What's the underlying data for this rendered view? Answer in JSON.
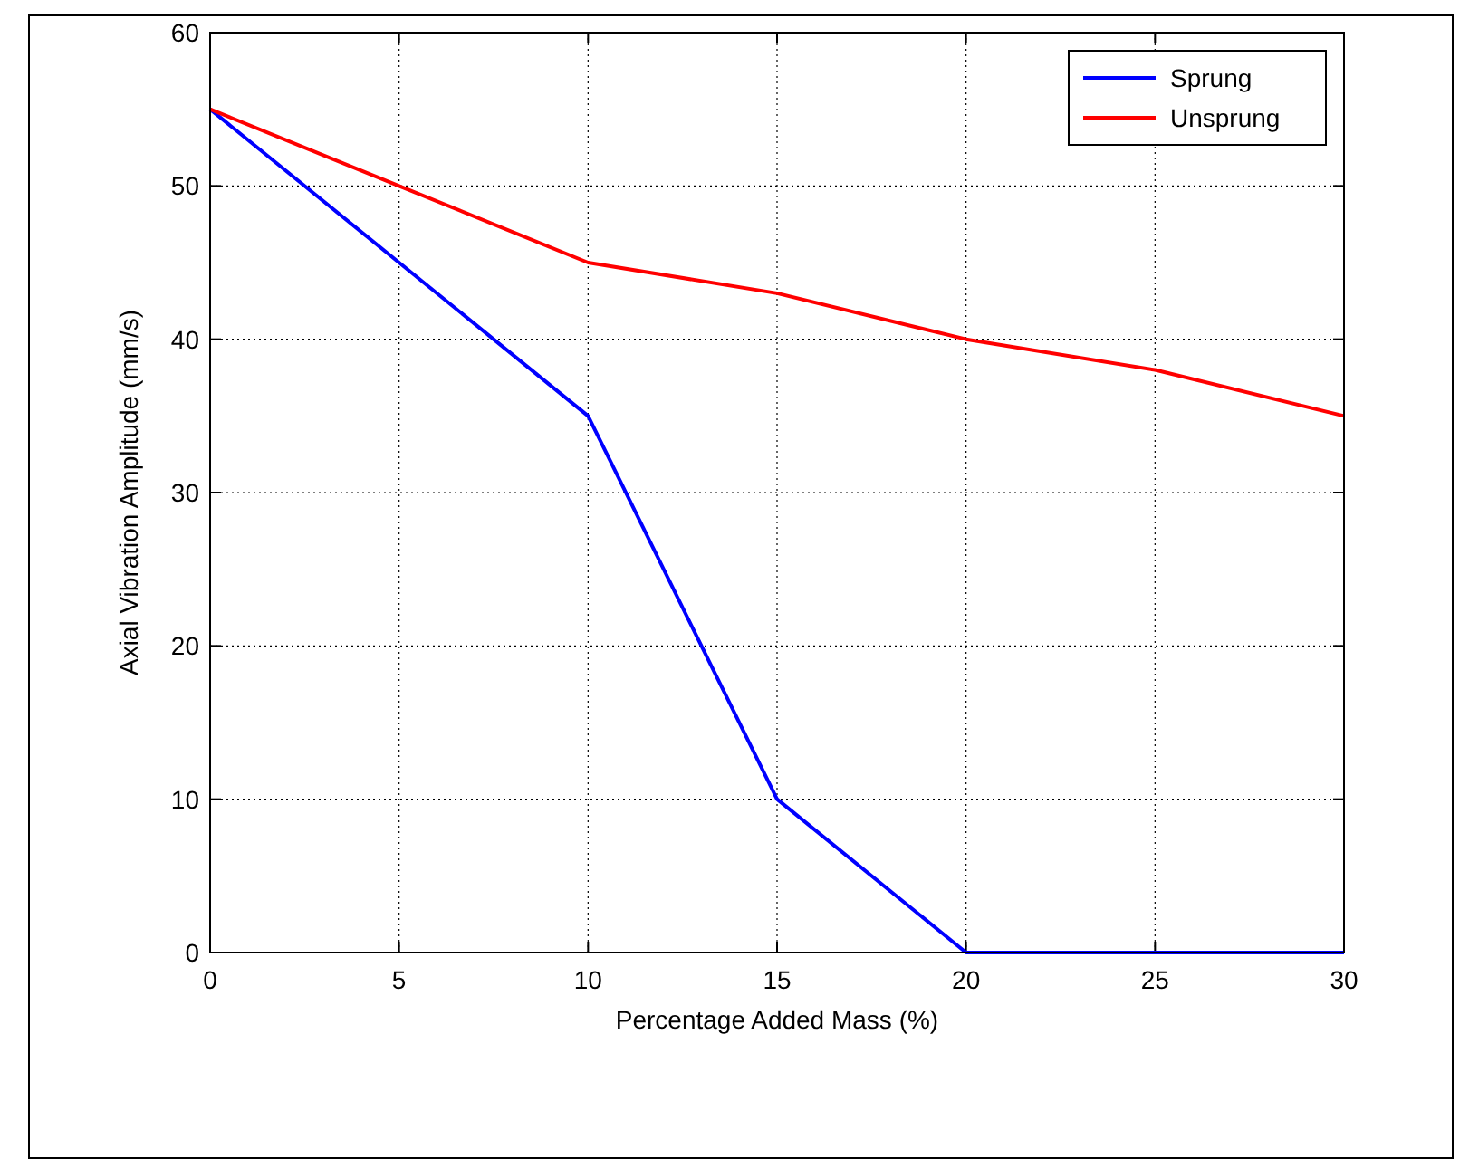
{
  "chart_data": {
    "type": "line",
    "xlabel": "Percentage Added Mass (%)",
    "ylabel": "Axial Vibration Amplitude (mm/s)",
    "x": [
      0,
      5,
      10,
      15,
      20,
      25,
      30
    ],
    "series": [
      {
        "name": "Sprung",
        "color": "#0000ff",
        "values": [
          55,
          45,
          35,
          10,
          0,
          0,
          0
        ]
      },
      {
        "name": "Unsprung",
        "color": "#ff0000",
        "values": [
          55,
          50,
          45,
          43,
          40,
          38,
          35
        ]
      }
    ],
    "xlim": [
      0,
      30
    ],
    "xticks": [
      0,
      5,
      10,
      15,
      20,
      25,
      30
    ],
    "ylim": [
      0,
      60
    ],
    "yticks": [
      0,
      10,
      20,
      30,
      40,
      50,
      60
    ],
    "grid": true,
    "legend": "top right",
    "line_style": "solid",
    "marker": "none"
  }
}
